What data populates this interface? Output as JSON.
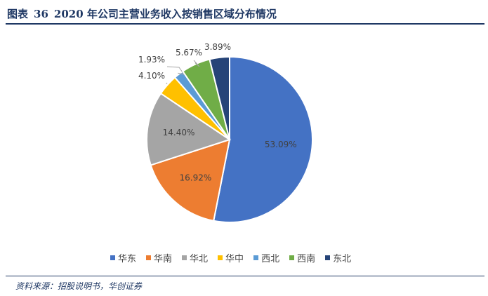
{
  "figure": {
    "label": "图表",
    "number": "36",
    "title": "2020 年公司主营业务收入按销售区域分布情况"
  },
  "source_text": "资料来源：招股说明书，华创证券",
  "chart_data": {
    "type": "pie",
    "slices": [
      {
        "name": "华东",
        "value": 53.09,
        "label": "53.09%",
        "color": "#4472c4"
      },
      {
        "name": "华南",
        "value": 16.92,
        "label": "16.92%",
        "color": "#ed7d31"
      },
      {
        "name": "华北",
        "value": 14.4,
        "label": "14.40%",
        "color": "#a5a5a5"
      },
      {
        "name": "华中",
        "value": 4.1,
        "label": "4.10%",
        "color": "#ffc000"
      },
      {
        "name": "西北",
        "value": 1.93,
        "label": "1.93%",
        "color": "#5b9bd5"
      },
      {
        "name": "西南",
        "value": 5.67,
        "label": "5.67%",
        "color": "#70ad47"
      },
      {
        "name": "东北",
        "value": 3.89,
        "label": "3.89%",
        "color": "#264478"
      }
    ],
    "legend_position": "bottom"
  }
}
